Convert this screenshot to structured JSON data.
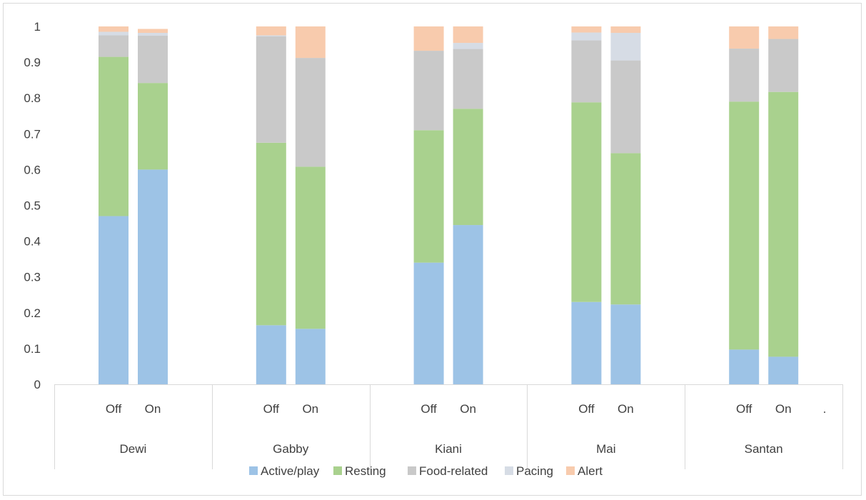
{
  "chart_data": {
    "type": "bar",
    "stacked": true,
    "groups": [
      "Dewi",
      "Gabby",
      "Kiani",
      "Mai",
      "Santan"
    ],
    "conditions": [
      "Off",
      "On"
    ],
    "stray_label": ".",
    "ylim": [
      0,
      1
    ],
    "yticks": [
      "0",
      "0.1",
      "0.2",
      "0.3",
      "0.4",
      "0.5",
      "0.6",
      "0.7",
      "0.8",
      "0.9",
      "1"
    ],
    "legend_position": "bottom",
    "grid": false,
    "series": [
      {
        "name": "Active/play",
        "color": "#9dc3e6",
        "values": [
          0.47,
          0.6,
          0.165,
          0.155,
          0.34,
          0.445,
          0.23,
          0.223,
          0.097,
          0.077
        ]
      },
      {
        "name": "Resting",
        "color": "#a9d18e",
        "values": [
          0.445,
          0.242,
          0.51,
          0.453,
          0.37,
          0.325,
          0.558,
          0.423,
          0.693,
          0.74
        ]
      },
      {
        "name": "Food-related",
        "color": "#c9c9c9",
        "values": [
          0.06,
          0.132,
          0.297,
          0.304,
          0.222,
          0.167,
          0.173,
          0.259,
          0.148,
          0.148
        ]
      },
      {
        "name": "Pacing",
        "color": "#d6dce5",
        "values": [
          0.01,
          0.008,
          0.003,
          0.0,
          0.0,
          0.017,
          0.022,
          0.077,
          0.0,
          0.0
        ]
      },
      {
        "name": "Alert",
        "color": "#f8cbad",
        "values": [
          0.015,
          0.011,
          0.025,
          0.088,
          0.068,
          0.046,
          0.017,
          0.018,
          0.062,
          0.035
        ]
      }
    ]
  }
}
